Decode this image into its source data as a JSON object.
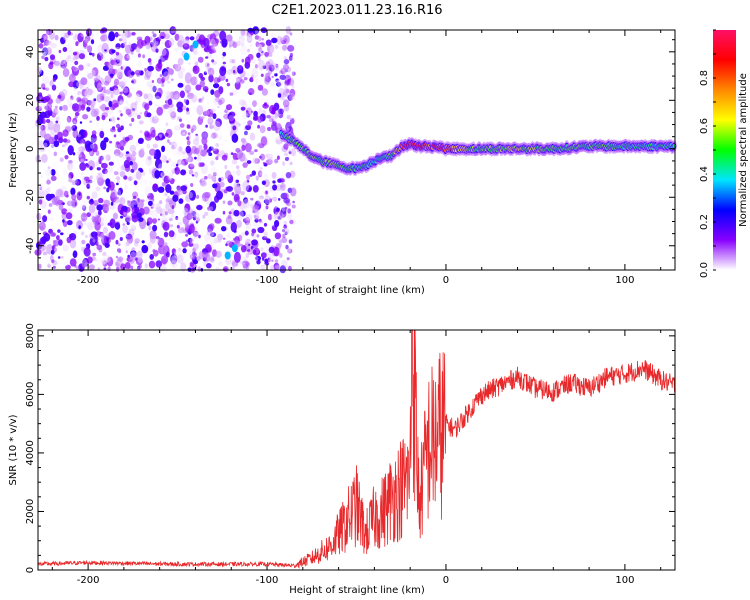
{
  "title": "C2E1.2023.011.23.16.R16",
  "colors": {
    "snr_line": "#e8282a",
    "spec_low": "#7a00e6",
    "frame": "#000000"
  },
  "chart_data": [
    {
      "type": "heatmap",
      "title": "",
      "xlabel": "Height of straight line (km)",
      "ylabel": "Frequency (Hz)",
      "xlim": [
        -228,
        128
      ],
      "ylim": [
        -50,
        49
      ],
      "x_ticks": [
        "-200",
        "-100",
        "0",
        "100"
      ],
      "y_ticks": [
        "-40",
        "-20",
        "0",
        "20",
        "40"
      ],
      "colorbar": {
        "label": "Normalized spectral amplitude",
        "range": [
          0,
          1
        ],
        "ticks": [
          "0.0",
          "0.2",
          "0.4",
          "0.6",
          "0.8"
        ],
        "stops": [
          "#ffffff",
          "#8800ff",
          "#0000ff",
          "#00e5ff",
          "#00ff00",
          "#ffff00",
          "#ff8800",
          "#ff0000",
          "#ff1066"
        ]
      },
      "noise_region_km": [
        -228,
        -85
      ],
      "ridge": {
        "x": [
          -92,
          -85,
          -80,
          -75,
          -70,
          -65,
          -60,
          -55,
          -50,
          -45,
          -40,
          -35,
          -30,
          -25,
          -20,
          -15,
          -10,
          -5,
          0,
          10,
          20,
          40,
          60,
          80,
          100,
          128
        ],
        "y": [
          6,
          3,
          0,
          -3,
          -5,
          -6,
          -7,
          -8,
          -8,
          -7,
          -5,
          -3,
          -3,
          1,
          2,
          1,
          1,
          1,
          0,
          0,
          0,
          0,
          0,
          1,
          1,
          1
        ],
        "amplitude": [
          0.45,
          0.5,
          0.55,
          0.55,
          0.5,
          0.55,
          0.55,
          0.5,
          0.45,
          0.45,
          0.4,
          0.45,
          0.5,
          0.8,
          0.85,
          0.85,
          0.8,
          0.85,
          0.85,
          0.6,
          0.5,
          0.6,
          0.5,
          0.5,
          0.45,
          0.45
        ]
      }
    },
    {
      "type": "line",
      "title": "",
      "xlabel": "Height of straight line (km)",
      "ylabel": "SNR (10 * v/v)",
      "xlim": [
        -228,
        128
      ],
      "ylim": [
        0,
        8200
      ],
      "x_ticks": [
        "-200",
        "-100",
        "0",
        "100"
      ],
      "y_ticks": [
        "0",
        "2000",
        "4000",
        "6000",
        "8000"
      ],
      "series": [
        {
          "x": [
            -228,
            -200,
            -150,
            -100,
            -85,
            -75,
            -65,
            -58,
            -50,
            -45,
            -40,
            -35,
            -30,
            -25,
            -20,
            -19,
            -15,
            -10,
            -5,
            0,
            5,
            10,
            20,
            30,
            40,
            50,
            60,
            70,
            80,
            90,
            100,
            110,
            120,
            128
          ],
          "y": [
            200,
            250,
            200,
            200,
            150,
            400,
            800,
            1400,
            2200,
            1200,
            1800,
            2000,
            2500,
            2800,
            3200,
            8200,
            2200,
            4200,
            4500,
            5000,
            4800,
            5200,
            6000,
            6300,
            6600,
            6200,
            6100,
            6400,
            6200,
            6600,
            6700,
            6900,
            6500,
            6300
          ]
        }
      ]
    }
  ]
}
